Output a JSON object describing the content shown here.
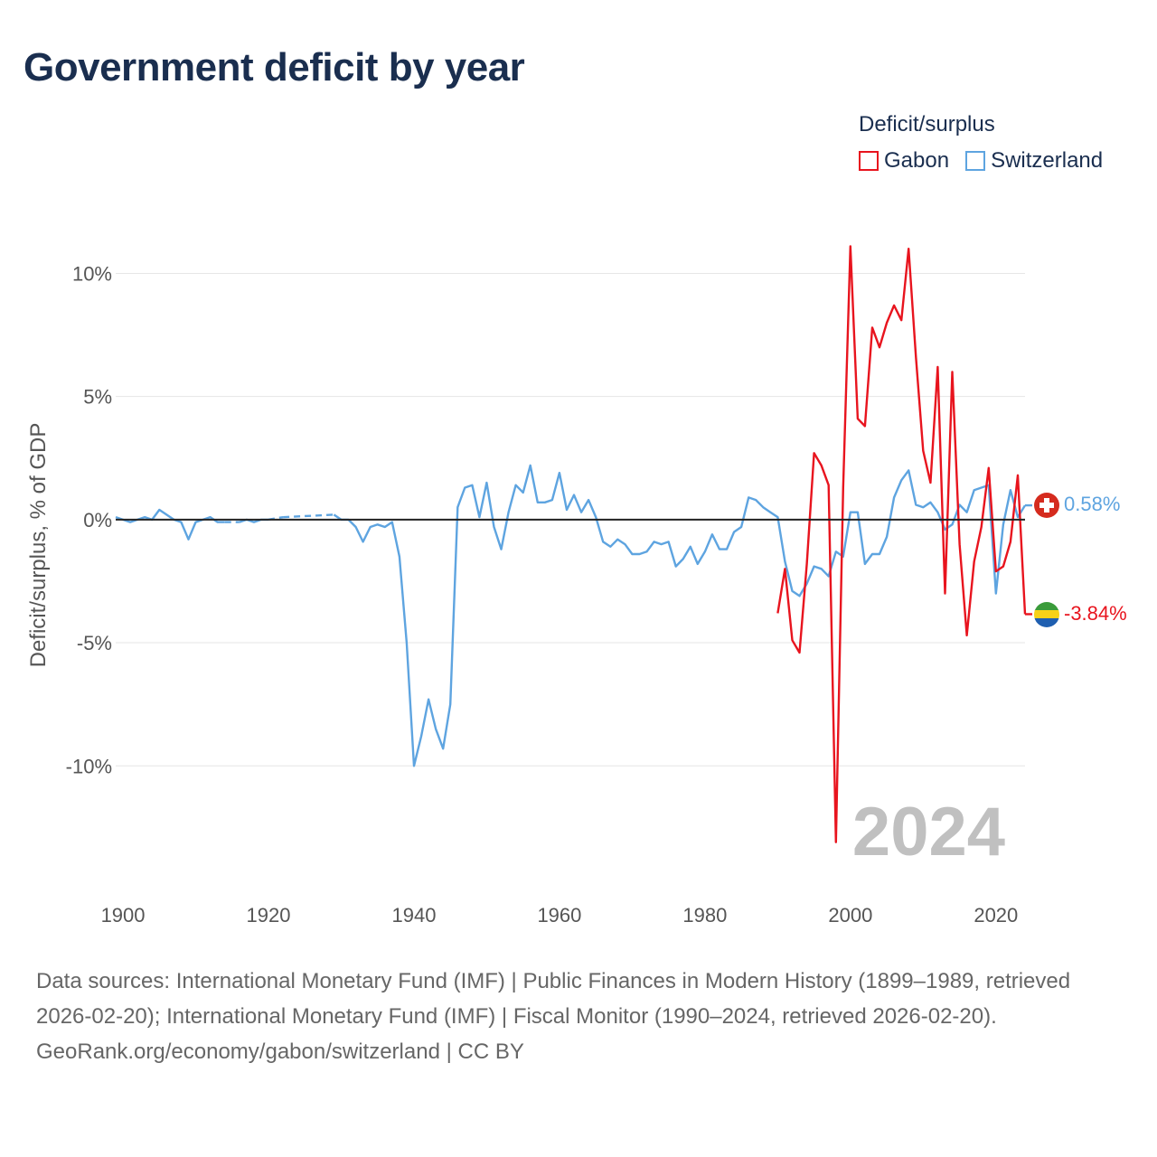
{
  "title": "Government deficit by year",
  "legend": {
    "title": "Deficit/surplus",
    "items": [
      {
        "label": "Gabon",
        "color": "#e8141e"
      },
      {
        "label": "Switzerland",
        "color": "#5ea4e0"
      }
    ]
  },
  "footer": {
    "sources": "Data sources: International Monetary Fund (IMF) | Public Finances in Modern History (1899–1989, retrieved 2026-02-20); International Monetary Fund (IMF) | Fiscal Monitor (1990–2024, retrieved 2026-02-20).",
    "credit": "GeoRank.org/economy/gabon/switzerland | CC BY"
  },
  "chart_data": {
    "type": "line",
    "title": "Government deficit by year",
    "xlabel": "",
    "ylabel": "Deficit/surplus, % of GDP",
    "xlim": [
      1899,
      2024
    ],
    "ylim": [
      -14.8,
      12
    ],
    "x_ticks": [
      1900,
      1920,
      1940,
      1960,
      1980,
      2000,
      2020
    ],
    "x_tick_labels": [
      "1900",
      "1920",
      "1940",
      "1960",
      "1980",
      "2000",
      "2020"
    ],
    "y_ticks": [
      10,
      5,
      0,
      -5,
      -10
    ],
    "y_tick_labels": [
      "10%",
      "5%",
      "0%",
      "-5%",
      "-10%"
    ],
    "year_label": "2024",
    "zero_line": true,
    "series": [
      {
        "name": "Switzerland",
        "color": "#5ea4e0",
        "end_label": "0.58%",
        "flag": "switzerland-flag",
        "points": [
          [
            1899,
            0.1
          ],
          [
            1900,
            0.0
          ],
          [
            1901,
            -0.1
          ],
          [
            1902,
            0.0
          ],
          [
            1903,
            0.1
          ],
          [
            1904,
            0.0
          ],
          [
            1905,
            0.4
          ],
          [
            1906,
            0.2
          ],
          [
            1907,
            0.0
          ],
          [
            1908,
            -0.1
          ],
          [
            1909,
            -0.8
          ],
          [
            1910,
            -0.1
          ],
          [
            1911,
            0.0
          ],
          [
            1912,
            0.1
          ],
          [
            1913,
            -0.1
          ],
          [
            1914,
            -0.1
          ],
          [
            1915,
            null
          ],
          [
            1916,
            -0.1
          ],
          [
            1917,
            0.0
          ],
          [
            1918,
            -0.1
          ],
          [
            1919,
            0.0
          ],
          [
            1920,
            0.0
          ],
          [
            1921,
            null
          ],
          [
            1922,
            0.1
          ],
          [
            1923,
            null
          ],
          [
            1924,
            null
          ],
          [
            1925,
            null
          ],
          [
            1926,
            null
          ],
          [
            1927,
            null
          ],
          [
            1928,
            null
          ],
          [
            1929,
            0.2
          ],
          [
            1930,
            0.0
          ],
          [
            1931,
            0.0
          ],
          [
            1932,
            -0.3
          ],
          [
            1933,
            -0.9
          ],
          [
            1934,
            -0.3
          ],
          [
            1935,
            -0.2
          ],
          [
            1936,
            -0.3
          ],
          [
            1937,
            -0.1
          ],
          [
            1938,
            -1.5
          ],
          [
            1939,
            -5.0
          ],
          [
            1940,
            -10.0
          ],
          [
            1941,
            -8.8
          ],
          [
            1942,
            -7.3
          ],
          [
            1943,
            -8.5
          ],
          [
            1944,
            -9.3
          ],
          [
            1945,
            -7.5
          ],
          [
            1946,
            0.5
          ],
          [
            1947,
            1.3
          ],
          [
            1948,
            1.4
          ],
          [
            1949,
            0.1
          ],
          [
            1950,
            1.5
          ],
          [
            1951,
            -0.3
          ],
          [
            1952,
            -1.2
          ],
          [
            1953,
            0.3
          ],
          [
            1954,
            1.4
          ],
          [
            1955,
            1.1
          ],
          [
            1956,
            2.2
          ],
          [
            1957,
            0.7
          ],
          [
            1958,
            0.7
          ],
          [
            1959,
            0.8
          ],
          [
            1960,
            1.9
          ],
          [
            1961,
            0.4
          ],
          [
            1962,
            1.0
          ],
          [
            1963,
            0.3
          ],
          [
            1964,
            0.8
          ],
          [
            1965,
            0.1
          ],
          [
            1966,
            -0.9
          ],
          [
            1967,
            -1.1
          ],
          [
            1968,
            -0.8
          ],
          [
            1969,
            -1.0
          ],
          [
            1970,
            -1.4
          ],
          [
            1971,
            -1.4
          ],
          [
            1972,
            -1.3
          ],
          [
            1973,
            -0.9
          ],
          [
            1974,
            -1.0
          ],
          [
            1975,
            -0.9
          ],
          [
            1976,
            -1.9
          ],
          [
            1977,
            -1.6
          ],
          [
            1978,
            -1.1
          ],
          [
            1979,
            -1.8
          ],
          [
            1980,
            -1.3
          ],
          [
            1981,
            -0.6
          ],
          [
            1982,
            -1.2
          ],
          [
            1983,
            -1.2
          ],
          [
            1984,
            -0.5
          ],
          [
            1985,
            -0.3
          ],
          [
            1986,
            0.9
          ],
          [
            1987,
            0.8
          ],
          [
            1988,
            0.5
          ],
          [
            1989,
            0.3
          ],
          [
            1990,
            0.1
          ],
          [
            1991,
            -1.7
          ],
          [
            1992,
            -2.9
          ],
          [
            1993,
            -3.1
          ],
          [
            1994,
            -2.6
          ],
          [
            1995,
            -1.9
          ],
          [
            1996,
            -2.0
          ],
          [
            1997,
            -2.3
          ],
          [
            1998,
            -1.3
          ],
          [
            1999,
            -1.5
          ],
          [
            2000,
            0.3
          ],
          [
            2001,
            0.3
          ],
          [
            2002,
            -1.8
          ],
          [
            2003,
            -1.4
          ],
          [
            2004,
            -1.4
          ],
          [
            2005,
            -0.7
          ],
          [
            2006,
            0.9
          ],
          [
            2007,
            1.6
          ],
          [
            2008,
            2.0
          ],
          [
            2009,
            0.6
          ],
          [
            2010,
            0.5
          ],
          [
            2011,
            0.7
          ],
          [
            2012,
            0.3
          ],
          [
            2013,
            -0.4
          ],
          [
            2014,
            -0.2
          ],
          [
            2015,
            0.6
          ],
          [
            2016,
            0.3
          ],
          [
            2017,
            1.2
          ],
          [
            2018,
            1.3
          ],
          [
            2019,
            1.4
          ],
          [
            2020,
            -3.0
          ],
          [
            2021,
            -0.2
          ],
          [
            2022,
            1.2
          ],
          [
            2023,
            0.1
          ],
          [
            2024,
            0.58
          ]
        ],
        "dashed_gaps": [
          [
            1914,
            1916
          ],
          [
            1920,
            1922
          ],
          [
            1922,
            1929
          ]
        ]
      },
      {
        "name": "Gabon",
        "color": "#e8141e",
        "end_label": "-3.84%",
        "flag": "gabon-flag",
        "points": [
          [
            1990,
            -3.8
          ],
          [
            1991,
            -2.0
          ],
          [
            1992,
            -4.9
          ],
          [
            1993,
            -5.4
          ],
          [
            1994,
            -1.8
          ],
          [
            1995,
            2.7
          ],
          [
            1996,
            2.2
          ],
          [
            1997,
            1.4
          ],
          [
            1998,
            -13.1
          ],
          [
            1999,
            1.3
          ],
          [
            2000,
            11.1
          ],
          [
            2001,
            4.1
          ],
          [
            2002,
            3.8
          ],
          [
            2003,
            7.8
          ],
          [
            2004,
            7.0
          ],
          [
            2005,
            8.0
          ],
          [
            2006,
            8.7
          ],
          [
            2007,
            8.1
          ],
          [
            2008,
            11.0
          ],
          [
            2009,
            6.6
          ],
          [
            2010,
            2.8
          ],
          [
            2011,
            1.5
          ],
          [
            2012,
            6.2
          ],
          [
            2013,
            -3.0
          ],
          [
            2014,
            6.0
          ],
          [
            2015,
            -1.0
          ],
          [
            2016,
            -4.7
          ],
          [
            2017,
            -1.7
          ],
          [
            2018,
            -0.3
          ],
          [
            2019,
            2.1
          ],
          [
            2020,
            -2.1
          ],
          [
            2021,
            -1.9
          ],
          [
            2022,
            -0.9
          ],
          [
            2023,
            1.8
          ],
          [
            2024,
            -3.84
          ]
        ]
      }
    ]
  }
}
